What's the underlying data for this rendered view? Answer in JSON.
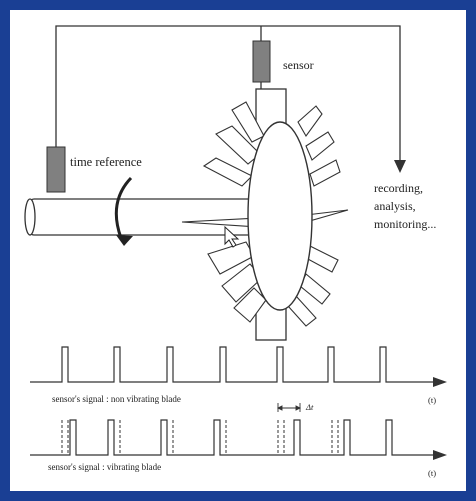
{
  "labels": {
    "sensor": "sensor",
    "time_reference": "time reference",
    "output_line1": "recording,",
    "output_line2": "analysis,",
    "output_line3": "monitoring...",
    "delta_t": "Δt",
    "signal_non_vibrating": "sensor's signal : non vibrating blade",
    "signal_vibrating": "sensor's signal : vibrating blade",
    "axis_unit_top": "(t)",
    "axis_unit_bottom": "(t)"
  },
  "colors": {
    "frame_border": "#1a3f94",
    "line": "#333333",
    "sensor_fill": "#808080"
  }
}
